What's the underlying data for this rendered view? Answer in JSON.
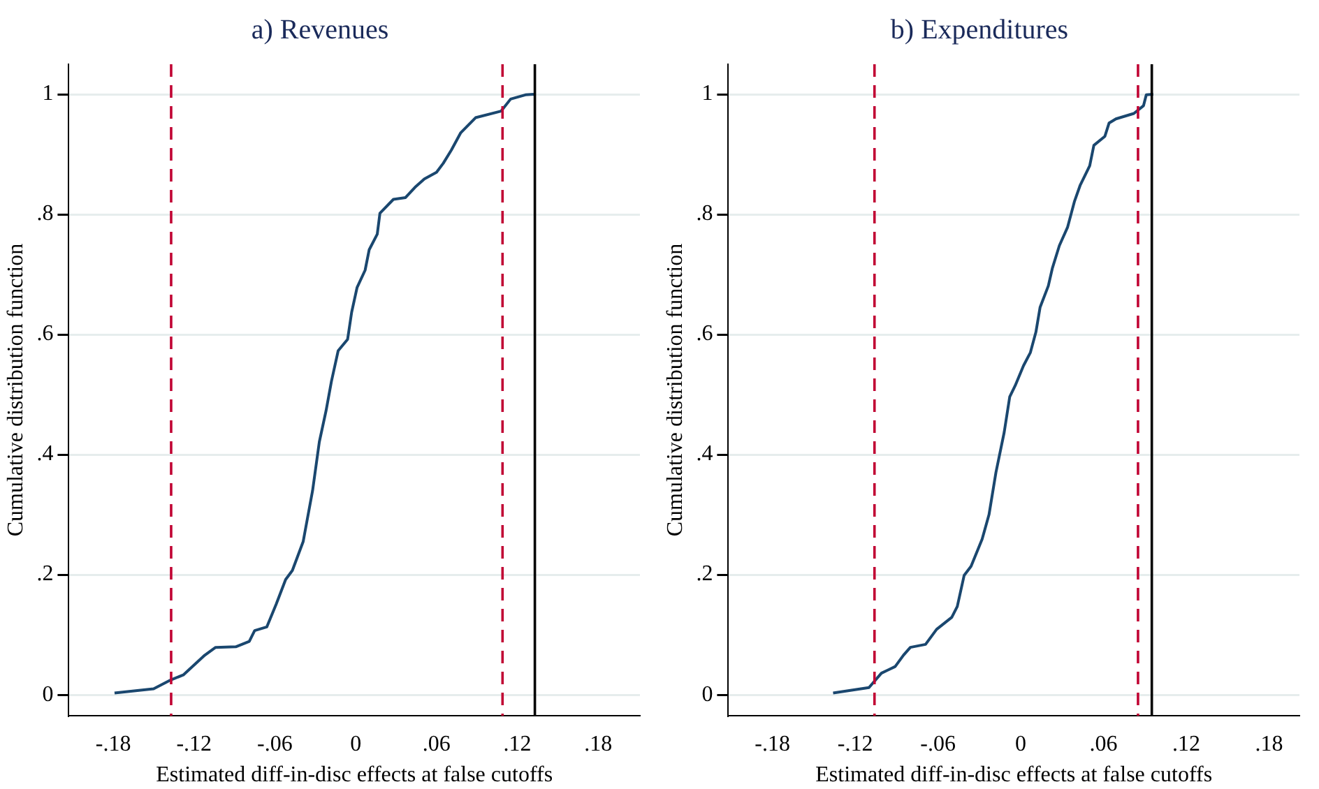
{
  "chart_data": [
    {
      "type": "line",
      "title": "a) Revenues",
      "xlabel": "Estimated diff-in-disc effects at false cutoffs",
      "ylabel": "Cumulative distribution function",
      "grid": "y",
      "legend": false,
      "marker": "none",
      "line_style": "solid",
      "xlim": [
        -0.213,
        0.211
      ],
      "ylim": [
        -0.035,
        1.05
      ],
      "xticks": [
        {
          "value": -0.18,
          "label": "-.18"
        },
        {
          "value": -0.12,
          "label": "-.12"
        },
        {
          "value": -0.06,
          "label": "-.06"
        },
        {
          "value": 0,
          "label": "0"
        },
        {
          "value": 0.06,
          "label": ".06"
        },
        {
          "value": 0.12,
          "label": ".12"
        },
        {
          "value": 0.18,
          "label": ".18"
        }
      ],
      "yticks": [
        {
          "value": 0,
          "label": "0"
        },
        {
          "value": 0.2,
          "label": ".2"
        },
        {
          "value": 0.4,
          "label": ".4"
        },
        {
          "value": 0.6,
          "label": ".6"
        },
        {
          "value": 0.8,
          "label": ".8"
        },
        1
      ],
      "x": [
        -0.179,
        -0.15,
        -0.137,
        -0.128,
        -0.112,
        -0.104,
        -0.089,
        -0.079,
        -0.075,
        -0.066,
        -0.059,
        -0.052,
        -0.047,
        -0.039,
        -0.032,
        -0.027,
        -0.022,
        -0.018,
        -0.013,
        -0.006,
        -0.003,
        0.001,
        0.007,
        0.01,
        0.016,
        0.018,
        0.028,
        0.037,
        0.044,
        0.051,
        0.06,
        0.065,
        0.071,
        0.078,
        0.089,
        0.108,
        0.115,
        0.126,
        0.133
      ],
      "series": [
        {
          "color": "#1a476f",
          "values": [
            0.003,
            0.01,
            0.025,
            0.033,
            0.066,
            0.079,
            0.08,
            0.089,
            0.107,
            0.113,
            0.151,
            0.192,
            0.207,
            0.255,
            0.34,
            0.421,
            0.473,
            0.522,
            0.573,
            0.592,
            0.637,
            0.678,
            0.707,
            0.741,
            0.767,
            0.802,
            0.825,
            0.828,
            0.845,
            0.859,
            0.87,
            0.885,
            0.907,
            0.936,
            0.961,
            0.972,
            0.992,
            0.999,
            1.0
          ]
        }
      ],
      "ref_lines": [
        {
          "axis": "x",
          "value": -0.137,
          "color": "#c10534",
          "line_style": "dashed"
        },
        {
          "axis": "x",
          "value": 0.109,
          "color": "#c10534",
          "line_style": "dashed"
        },
        {
          "axis": "x",
          "value": 0.133,
          "color": "#000000",
          "line_style": "solid"
        }
      ]
    },
    {
      "type": "line",
      "title": "b) Expenditures",
      "xlabel": "Estimated diff-in-disc effects at false cutoffs",
      "ylabel": "Cumulative distribution function",
      "grid": "y",
      "legend": false,
      "marker": "none",
      "line_style": "solid",
      "xlim": [
        -0.212,
        0.202
      ],
      "ylim": [
        -0.035,
        1.05
      ],
      "xticks": [
        {
          "value": -0.18,
          "label": "-.18"
        },
        {
          "value": -0.12,
          "label": "-.12"
        },
        {
          "value": -0.06,
          "label": "-.06"
        },
        {
          "value": 0,
          "label": "0"
        },
        {
          "value": 0.06,
          "label": ".06"
        },
        {
          "value": 0.12,
          "label": ".12"
        },
        {
          "value": 0.18,
          "label": ".18"
        }
      ],
      "yticks": [
        {
          "value": 0,
          "label": "0"
        },
        {
          "value": 0.2,
          "label": ".2"
        },
        {
          "value": 0.4,
          "label": ".4"
        },
        {
          "value": 0.6,
          "label": ".6"
        },
        {
          "value": 0.8,
          "label": ".8"
        },
        1
      ],
      "x": [
        -0.136,
        -0.11,
        -0.101,
        -0.091,
        -0.085,
        -0.08,
        -0.069,
        -0.061,
        -0.05,
        -0.046,
        -0.041,
        -0.036,
        -0.028,
        -0.023,
        -0.018,
        -0.012,
        -0.008,
        -0.004,
        0.002,
        0.007,
        0.011,
        0.014,
        0.02,
        0.023,
        0.028,
        0.034,
        0.039,
        0.043,
        0.05,
        0.053,
        0.061,
        0.064,
        0.069,
        0.082,
        0.089,
        0.091,
        0.096
      ],
      "series": [
        {
          "color": "#1a476f",
          "values": [
            0.003,
            0.012,
            0.036,
            0.047,
            0.066,
            0.079,
            0.084,
            0.109,
            0.129,
            0.147,
            0.199,
            0.214,
            0.259,
            0.3,
            0.37,
            0.437,
            0.496,
            0.515,
            0.548,
            0.57,
            0.604,
            0.645,
            0.681,
            0.711,
            0.748,
            0.779,
            0.822,
            0.848,
            0.881,
            0.915,
            0.93,
            0.952,
            0.959,
            0.968,
            0.981,
            0.999,
            1.0
          ]
        }
      ],
      "ref_lines": [
        {
          "axis": "x",
          "value": -0.106,
          "color": "#c10534",
          "line_style": "dashed"
        },
        {
          "axis": "x",
          "value": 0.085,
          "color": "#c10534",
          "line_style": "dashed"
        },
        {
          "axis": "x",
          "value": 0.095,
          "color": "#000000",
          "line_style": "solid"
        }
      ]
    }
  ]
}
